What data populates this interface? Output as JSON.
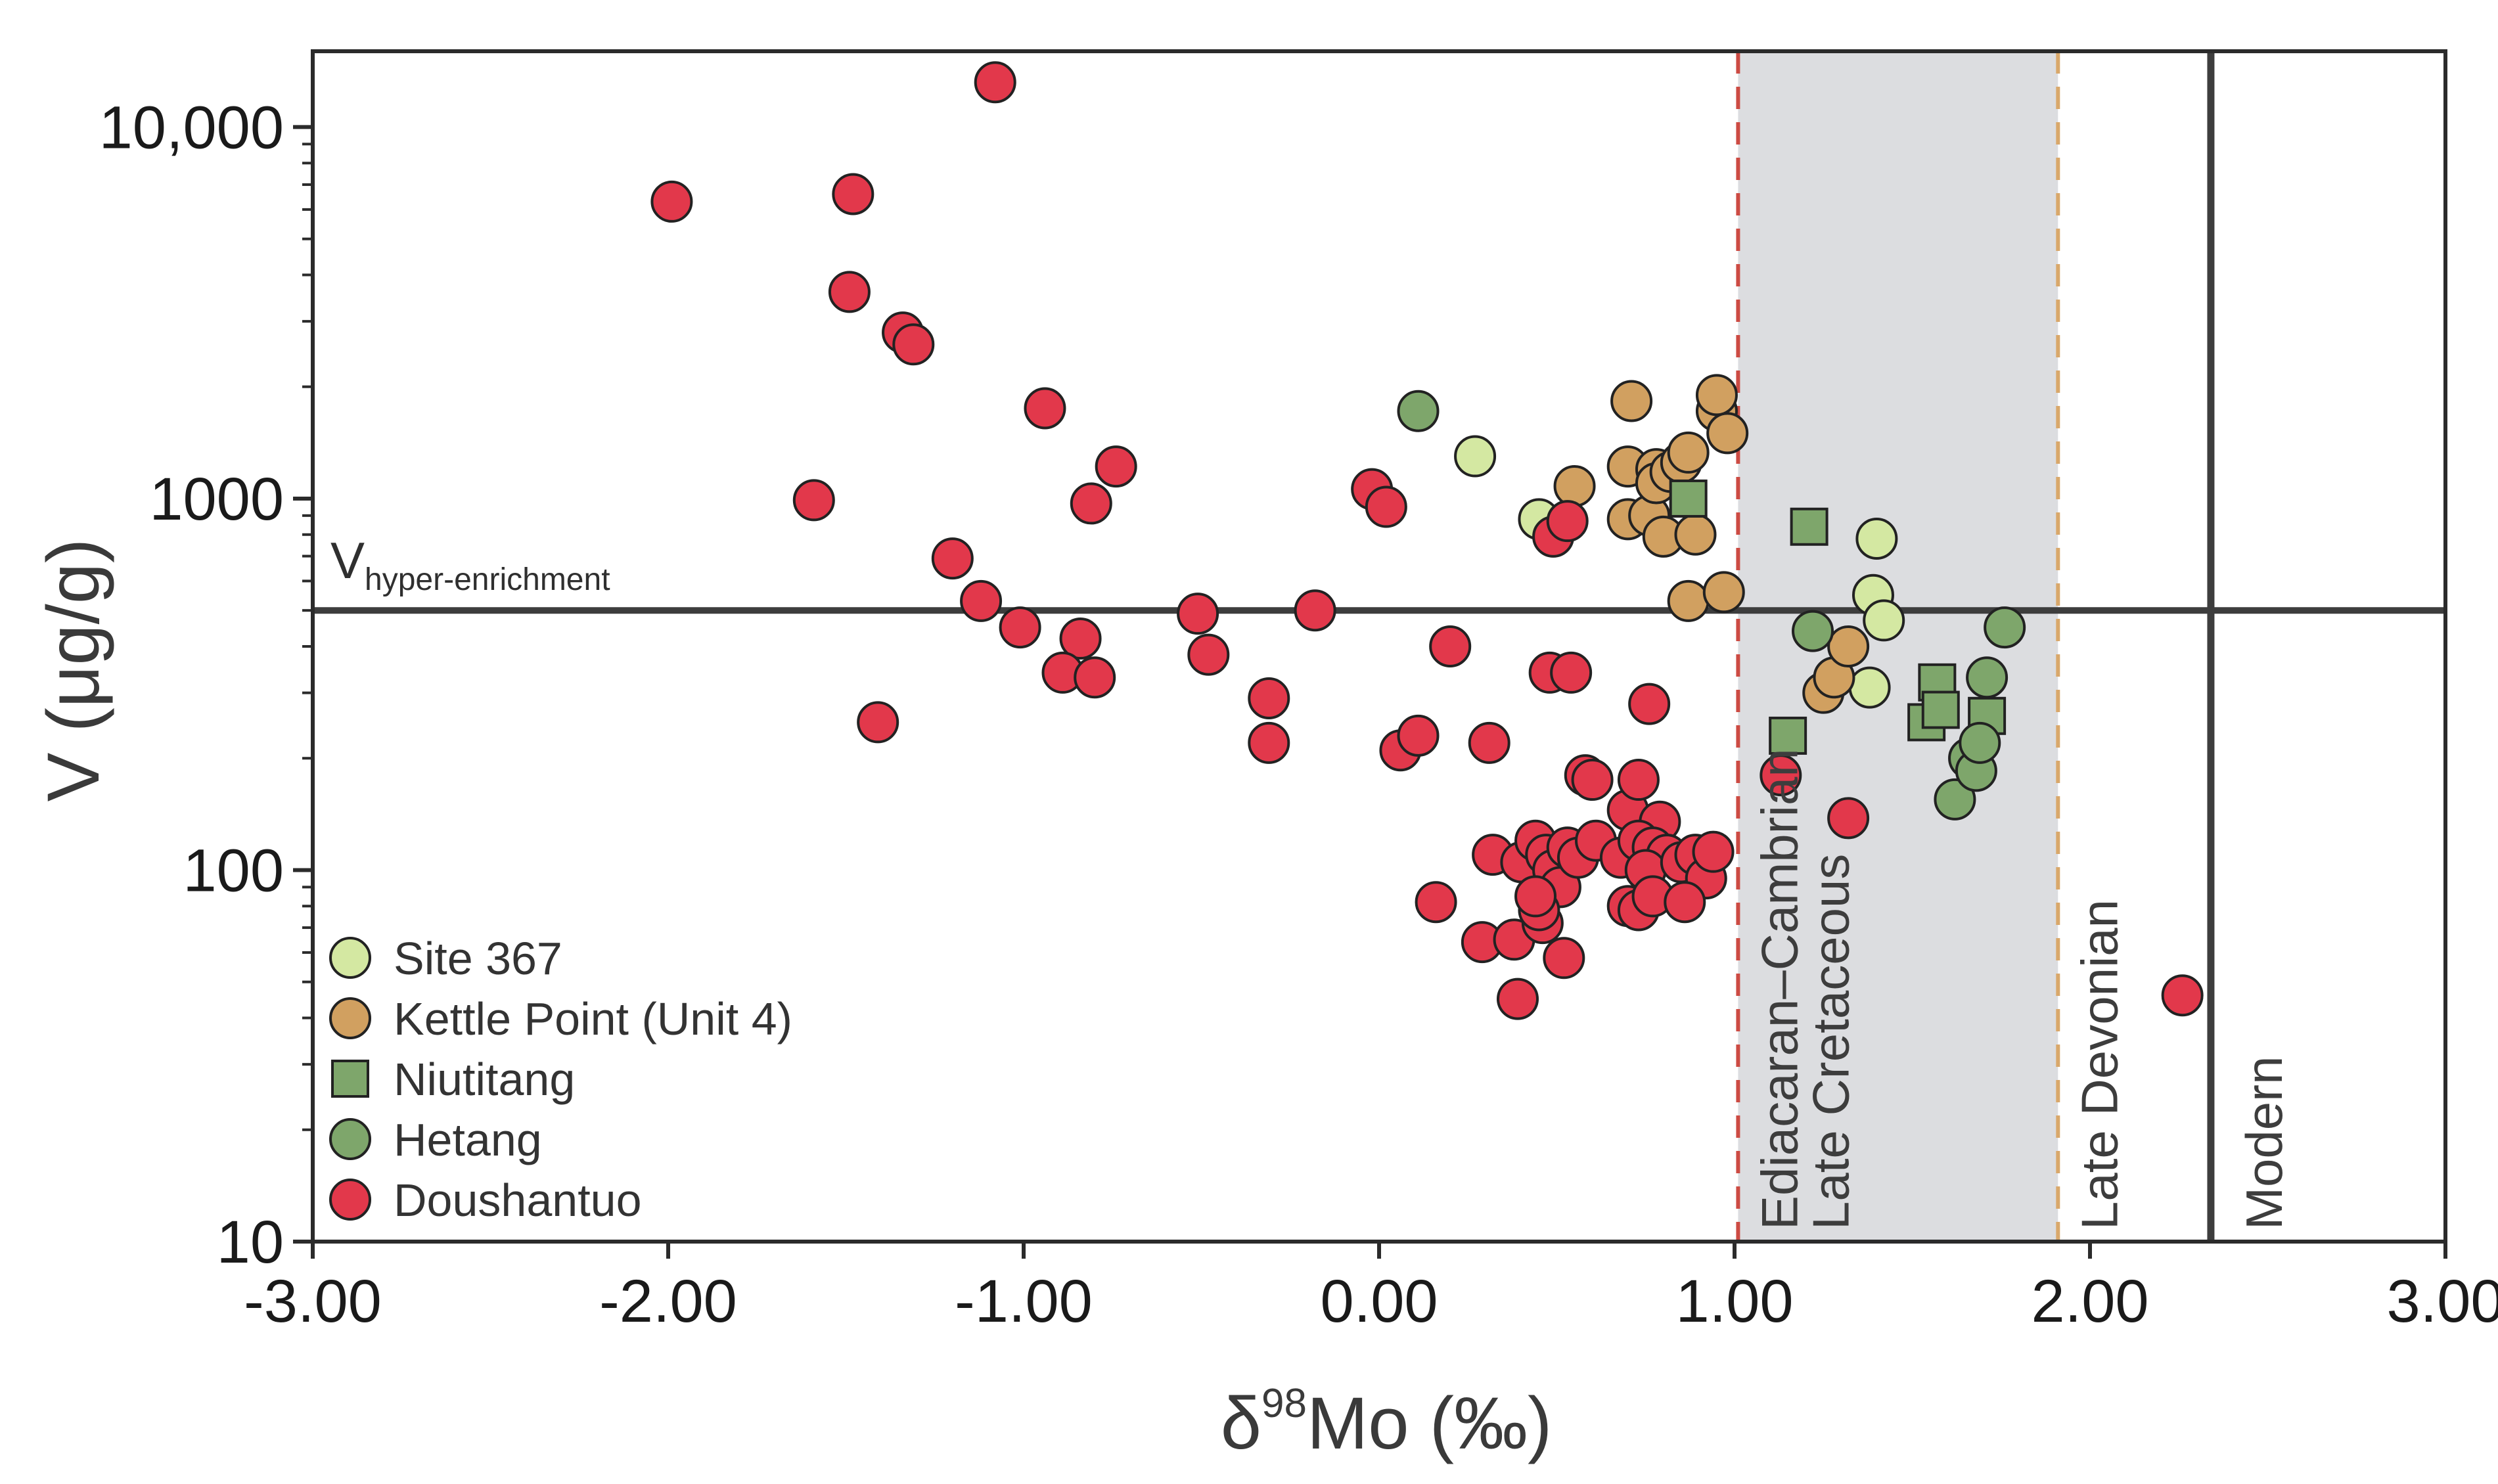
{
  "chart_data": {
    "type": "scatter",
    "title": "",
    "xlabel": {
      "prefix": "δ",
      "sup": "98",
      "rest": "Mo (‰)"
    },
    "ylabel": "V (μg/g)",
    "xlim": [
      -3.0,
      3.0
    ],
    "ylim": [
      10,
      16000
    ],
    "y_scale": "log",
    "grid": false,
    "legend_position": "bottom-left",
    "x_ticks": [
      {
        "value": -3,
        "label": "-3.00"
      },
      {
        "value": -2,
        "label": "-2.00"
      },
      {
        "value": -1,
        "label": "-1.00"
      },
      {
        "value": 0,
        "label": "0.00"
      },
      {
        "value": 1,
        "label": "1.00"
      },
      {
        "value": 2,
        "label": "2.00"
      },
      {
        "value": 3,
        "label": "3.00"
      }
    ],
    "y_ticks": [
      {
        "value": 10,
        "label": "10"
      },
      {
        "value": 100,
        "label": "100"
      },
      {
        "value": 1000,
        "label": "1000"
      },
      {
        "value": 10000,
        "label": "10,000"
      }
    ],
    "hline": {
      "value": 500,
      "label_main": "V",
      "label_sub": "hyper-enrichment",
      "color": "#3d3d3d"
    },
    "shaded_band": {
      "x0": 1.01,
      "x1": 1.91,
      "color": "#dcdde0"
    },
    "vlines": [
      {
        "x": 1.01,
        "style": "dashed",
        "color": "#cc4b43",
        "label": "Ediacaran–Cambrian"
      },
      {
        "x": 1.91,
        "style": "dashed",
        "color": "#d9a86b",
        "label": "Late Devonian"
      },
      {
        "x": 2.34,
        "style": "solid",
        "color": "#3d3d3d",
        "label": "Modern"
      }
    ],
    "band_inner_label": "Late Cretaceous",
    "series": [
      {
        "name": "Site 367",
        "marker": "circle",
        "color": "#d4e8a2",
        "points": [
          [
            0.27,
            1300
          ],
          [
            0.45,
            880
          ],
          [
            1.38,
            310
          ],
          [
            1.39,
            550
          ],
          [
            1.4,
            780
          ],
          [
            1.42,
            470
          ]
        ]
      },
      {
        "name": "Kettle Point (Unit 4)",
        "marker": "circle",
        "color": "#d1a060",
        "points": [
          [
            0.55,
            1080
          ],
          [
            0.7,
            1220
          ],
          [
            0.7,
            880
          ],
          [
            0.71,
            1830
          ],
          [
            0.76,
            900
          ],
          [
            0.78,
            1200
          ],
          [
            0.78,
            1100
          ],
          [
            0.8,
            790
          ],
          [
            0.82,
            1180
          ],
          [
            0.85,
            1250
          ],
          [
            0.87,
            1330
          ],
          [
            0.87,
            530
          ],
          [
            0.89,
            800
          ],
          [
            0.95,
            1720
          ],
          [
            0.95,
            1900
          ],
          [
            0.98,
            1500
          ],
          [
            0.97,
            560
          ],
          [
            1.25,
            300
          ],
          [
            1.28,
            330
          ],
          [
            1.32,
            400
          ]
        ]
      },
      {
        "name": "Niutitang",
        "marker": "square",
        "color": "#7ea66b",
        "points": [
          [
            0.87,
            1000
          ],
          [
            1.15,
            230
          ],
          [
            1.21,
            840
          ],
          [
            1.54,
            250
          ],
          [
            1.57,
            320
          ],
          [
            1.58,
            270
          ],
          [
            1.71,
            260
          ]
        ]
      },
      {
        "name": "Hetang",
        "marker": "circle",
        "color": "#7ea66b",
        "points": [
          [
            0.11,
            1720
          ],
          [
            1.22,
            440
          ],
          [
            1.62,
            155
          ],
          [
            1.66,
            200
          ],
          [
            1.68,
            185
          ],
          [
            1.69,
            220
          ],
          [
            1.71,
            330
          ],
          [
            1.76,
            450
          ]
        ]
      },
      {
        "name": "Doushantuo",
        "marker": "circle",
        "color": "#e2384b",
        "points": [
          [
            -1.08,
            13200
          ],
          [
            -1.99,
            6300
          ],
          [
            -1.48,
            6600
          ],
          [
            -1.49,
            3600
          ],
          [
            -1.34,
            2800
          ],
          [
            -1.31,
            2600
          ],
          [
            -0.94,
            1750
          ],
          [
            -0.74,
            1220
          ],
          [
            -0.81,
            970
          ],
          [
            -1.59,
            990
          ],
          [
            -1.2,
            690
          ],
          [
            -1.12,
            530
          ],
          [
            -1.01,
            450
          ],
          [
            -1.41,
            250
          ],
          [
            -0.84,
            420
          ],
          [
            -0.89,
            340
          ],
          [
            -0.8,
            330
          ],
          [
            -0.51,
            490
          ],
          [
            -0.48,
            380
          ],
          [
            -0.31,
            290
          ],
          [
            -0.31,
            220
          ],
          [
            -0.18,
            500
          ],
          [
            -0.02,
            1060
          ],
          [
            0.02,
            950
          ],
          [
            0.06,
            210
          ],
          [
            0.11,
            230
          ],
          [
            0.2,
            400
          ],
          [
            0.31,
            220
          ],
          [
            0.48,
            340
          ],
          [
            0.54,
            340
          ],
          [
            0.49,
            790
          ],
          [
            0.53,
            870
          ],
          [
            0.76,
            280
          ],
          [
            0.58,
            180
          ],
          [
            0.6,
            175
          ],
          [
            0.7,
            145
          ],
          [
            0.73,
            175
          ],
          [
            0.79,
            135
          ],
          [
            0.16,
            82
          ],
          [
            0.32,
            110
          ],
          [
            0.4,
            105
          ],
          [
            0.44,
            120
          ],
          [
            0.47,
            110
          ],
          [
            0.49,
            100
          ],
          [
            0.51,
            90
          ],
          [
            0.53,
            115
          ],
          [
            0.56,
            108
          ],
          [
            0.61,
            120
          ],
          [
            0.68,
            108
          ],
          [
            0.73,
            120
          ],
          [
            0.77,
            115
          ],
          [
            0.81,
            110
          ],
          [
            0.75,
            100
          ],
          [
            0.85,
            105
          ],
          [
            0.89,
            110
          ],
          [
            0.92,
            95
          ],
          [
            0.94,
            112
          ],
          [
            0.7,
            80
          ],
          [
            0.73,
            78
          ],
          [
            0.77,
            85
          ],
          [
            0.86,
            82
          ],
          [
            0.29,
            64
          ],
          [
            0.38,
            65
          ],
          [
            0.46,
            72
          ],
          [
            0.45,
            78
          ],
          [
            0.44,
            85
          ],
          [
            0.52,
            58
          ],
          [
            0.39,
            45
          ],
          [
            1.13,
            180
          ],
          [
            1.32,
            138
          ],
          [
            2.26,
            46
          ]
        ]
      }
    ]
  }
}
